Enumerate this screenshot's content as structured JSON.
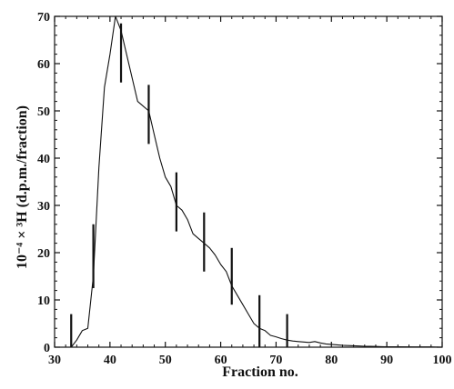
{
  "chart_data": {
    "type": "line",
    "xlabel": "Fraction no.",
    "ylabel": "10⁻⁴ × ³H (d.p.m./fraction)",
    "xlim": [
      30,
      100
    ],
    "ylim": [
      0,
      70
    ],
    "xticks": [
      30,
      40,
      50,
      60,
      70,
      80,
      90,
      100
    ],
    "yticks": [
      0,
      10,
      20,
      30,
      40,
      50,
      60,
      70
    ],
    "xtick_labels": [
      "30",
      "40",
      "50",
      "60",
      "70",
      "80",
      "90",
      "100"
    ],
    "ytick_labels": [
      "0",
      "10",
      "20",
      "30",
      "40",
      "50",
      "60",
      "70"
    ],
    "grid": false,
    "series": [
      {
        "x": [
          33,
          34,
          35,
          36,
          37,
          38,
          39,
          40,
          41,
          42,
          43,
          44,
          45,
          46,
          47,
          48,
          49,
          50,
          51,
          52,
          53,
          54,
          55,
          56,
          57,
          58,
          59,
          60,
          61,
          62,
          63,
          64,
          65,
          66,
          67,
          68,
          69,
          70,
          71,
          72,
          73,
          74,
          75,
          76,
          77,
          78,
          79,
          80,
          81,
          82,
          83,
          84,
          85,
          86,
          87,
          88,
          89,
          90,
          92,
          95,
          98,
          100
        ],
        "y": [
          0,
          1.5,
          3.5,
          4,
          15,
          38,
          55,
          62,
          70,
          67,
          62,
          57,
          52,
          51,
          50,
          45,
          40,
          36,
          34,
          30,
          29,
          27,
          24,
          23,
          22,
          21,
          19.5,
          17.5,
          16,
          13,
          11,
          9,
          7,
          5,
          4,
          3.5,
          2.5,
          2.2,
          1.8,
          1.5,
          1.3,
          1.2,
          1.1,
          1.0,
          1.2,
          0.9,
          0.7,
          0.6,
          0.5,
          0.4,
          0.35,
          0.3,
          0.25,
          0.2,
          0.18,
          0.15,
          0.12,
          0.1,
          0.1,
          0.05,
          0.05,
          0
        ]
      }
    ],
    "error_bars": [
      {
        "x": 33,
        "low": 0,
        "high": 7
      },
      {
        "x": 37,
        "low": 12.5,
        "high": 26
      },
      {
        "x": 42,
        "low": 56,
        "high": 68.5
      },
      {
        "x": 47,
        "low": 43,
        "high": 55.5
      },
      {
        "x": 52,
        "low": 24.5,
        "high": 37
      },
      {
        "x": 57,
        "low": 16,
        "high": 28.5
      },
      {
        "x": 62,
        "low": 9,
        "high": 21
      },
      {
        "x": 67,
        "low": 0,
        "high": 11
      },
      {
        "x": 72,
        "low": 0,
        "high": 7
      }
    ]
  }
}
